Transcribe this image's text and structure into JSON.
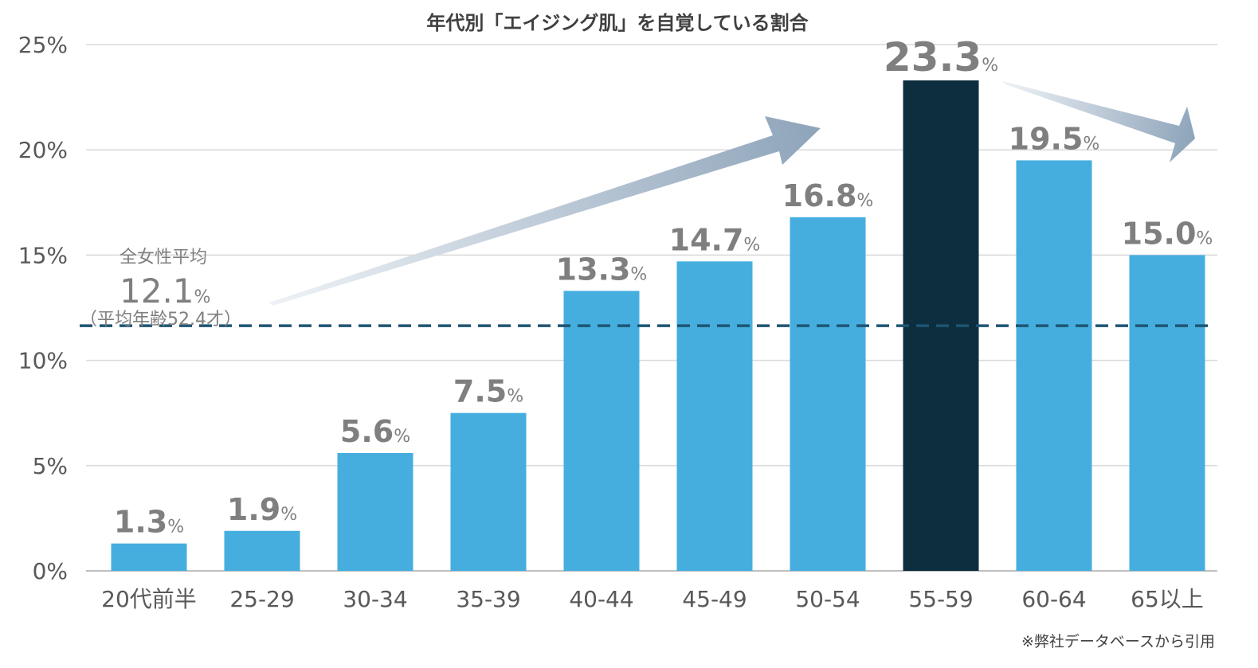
{
  "chart_data": {
    "type": "bar",
    "title": "年代別「エイジング肌」を自覚している割合",
    "categories": [
      "20代前半",
      "25-29",
      "30-34",
      "35-39",
      "40-44",
      "45-49",
      "50-54",
      "55-59",
      "60-64",
      "65以上"
    ],
    "values": [
      1.3,
      1.9,
      5.6,
      7.5,
      13.3,
      14.7,
      16.8,
      23.3,
      19.5,
      15.0
    ],
    "value_labels": [
      "1.3",
      "1.9",
      "5.6",
      "7.5",
      "13.3",
      "14.7",
      "16.8",
      "23.3",
      "19.5",
      "15.0"
    ],
    "value_unit": "%",
    "highlight_index": 7,
    "ylim": [
      0,
      25
    ],
    "yticks": [
      0,
      5,
      10,
      15,
      20,
      25
    ],
    "ytick_labels": [
      "0%",
      "5%",
      "10%",
      "15%",
      "20%",
      "25%"
    ],
    "grid": true,
    "reference_line": {
      "value": 12.1,
      "label": "全女性平均",
      "value_label": "12.1",
      "unit": "%",
      "note": "（平均年齢52.4才）",
      "style": "dashed"
    },
    "colors": {
      "bar": "#45aedf",
      "highlight": "#0d2e3f",
      "reference_line": "#1d5573",
      "grid": "#d9d9d9",
      "arrow_start": "#eef2f6",
      "arrow_end": "#8ea4ba"
    },
    "footnote": "※弊社データベースから引用"
  }
}
